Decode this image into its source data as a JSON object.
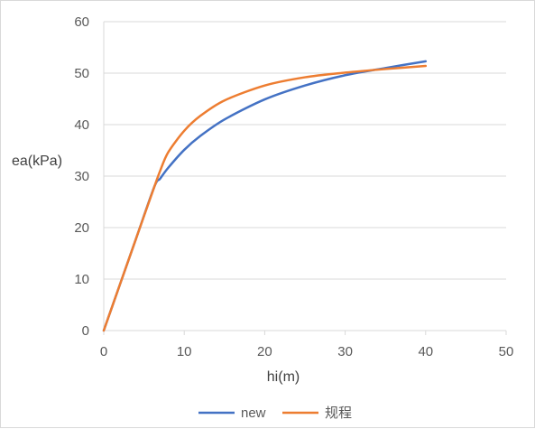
{
  "chart_data": {
    "type": "line",
    "title": "",
    "xlabel": "hi(m)",
    "ylabel": "ea(kPa)",
    "xlim": [
      0,
      50
    ],
    "ylim": [
      0,
      60
    ],
    "xticks": [
      0,
      10,
      20,
      30,
      40,
      50
    ],
    "yticks": [
      0,
      10,
      20,
      30,
      40,
      50,
      60
    ],
    "grid": "horizontal",
    "legend_position": "bottom",
    "series": [
      {
        "name": "new",
        "color": "#4472c4",
        "x": [
          0,
          2,
          4,
          6.3,
          7,
          8,
          10,
          12,
          15,
          20,
          25,
          30,
          35,
          40
        ],
        "y": [
          0,
          8.9,
          17.8,
          28,
          29.5,
          31.6,
          35.1,
          37.8,
          41.0,
          44.9,
          47.6,
          49.6,
          51.0,
          52.3
        ]
      },
      {
        "name": "规程",
        "color": "#ed7d31",
        "x": [
          0,
          2,
          4,
          6.3,
          7,
          8,
          10,
          12,
          15,
          20,
          25,
          30,
          35,
          40
        ],
        "y": [
          0,
          8.9,
          17.8,
          28,
          31.0,
          34.6,
          38.8,
          41.7,
          44.7,
          47.6,
          49.2,
          50.1,
          50.8,
          51.4
        ]
      }
    ]
  }
}
